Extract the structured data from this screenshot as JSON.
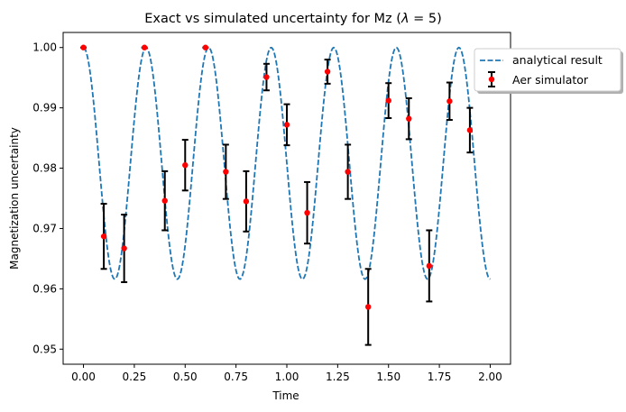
{
  "chart_data": {
    "type": "line",
    "title": "Exact vs simulated uncertainty for Mz (",
    "title_symbol": "λ",
    "title_suffix": " = 5)",
    "xlabel": "Time",
    "ylabel": "Magnetization uncertainty",
    "xlim": [
      -0.1,
      2.1
    ],
    "ylim": [
      0.9475,
      1.0025
    ],
    "xticks": [
      0.0,
      0.25,
      0.5,
      0.75,
      1.0,
      1.25,
      1.5,
      1.75,
      2.0
    ],
    "xtick_labels": [
      "0.00",
      "0.25",
      "0.50",
      "0.75",
      "1.00",
      "1.25",
      "1.50",
      "1.75",
      "2.00"
    ],
    "yticks": [
      0.95,
      0.96,
      0.97,
      0.98,
      0.99,
      1.0
    ],
    "ytick_labels": [
      "0.95",
      "0.96",
      "0.97",
      "0.98",
      "0.99",
      "1.00"
    ],
    "grid": false,
    "legend_position": "upper-right-outside",
    "series": [
      {
        "name": "analytical result",
        "kind": "dashed-line",
        "color": "#1f77b4",
        "model": {
          "center": 0.9808,
          "amplitude": 0.0192,
          "period": 0.3077,
          "x_start": 0.0,
          "x_end": 2.0
        }
      },
      {
        "name": "Aer simulator",
        "kind": "errorbar",
        "marker_color": "#ff0000",
        "errorbar_color": "#000000",
        "x": [
          0.0,
          0.1,
          0.2,
          0.3,
          0.4,
          0.5,
          0.6,
          0.7,
          0.8,
          0.9,
          1.0,
          1.1,
          1.2,
          1.3,
          1.4,
          1.5,
          1.6,
          1.7,
          1.8,
          1.9
        ],
        "y": [
          1.0,
          0.9687,
          0.9667,
          1.0,
          0.9746,
          0.9805,
          1.0,
          0.9794,
          0.9745,
          0.9951,
          0.9872,
          0.9726,
          0.996,
          0.9794,
          0.957,
          0.9912,
          0.9882,
          0.9638,
          0.9911,
          0.9863
        ],
        "yerr": [
          0.0,
          0.0054,
          0.0056,
          0.0,
          0.0049,
          0.0042,
          0.0,
          0.0045,
          0.005,
          0.0022,
          0.0034,
          0.0051,
          0.002,
          0.0045,
          0.0063,
          0.0029,
          0.0034,
          0.0059,
          0.0031,
          0.0037
        ]
      }
    ]
  }
}
